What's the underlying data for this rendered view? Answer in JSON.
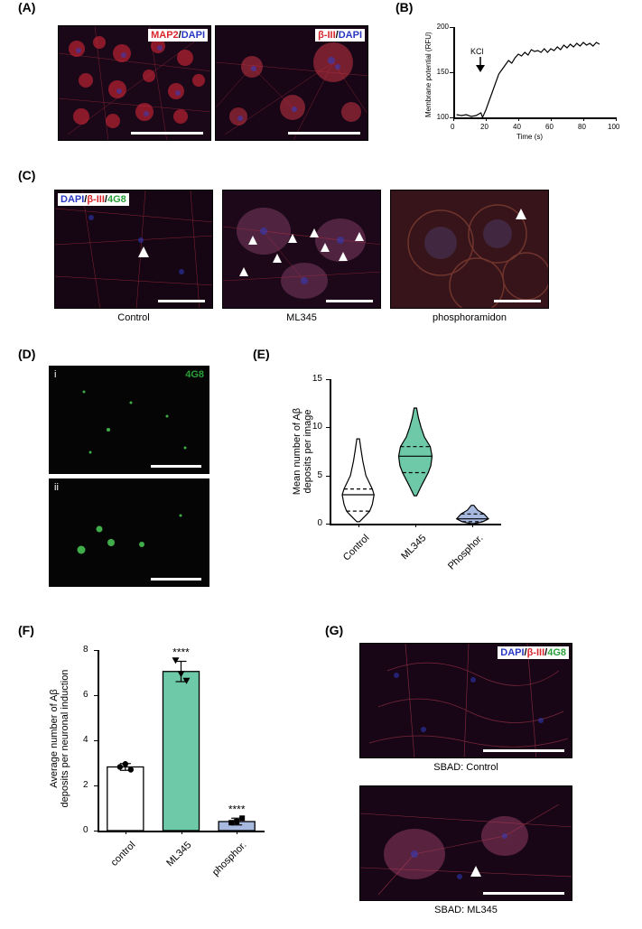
{
  "labels": {
    "A": "(A)",
    "B": "(B)",
    "C": "(C)",
    "D": "(D)",
    "E": "(E)",
    "F": "(F)",
    "G": "(G)"
  },
  "panel_label_fontsize": 14,
  "colors": {
    "MAP2": "#d8262c",
    "DAPI": "#2838c4",
    "bIII": "#d8262c",
    "fg8": "#2aa039",
    "micro_bg_dark": "#1a0818",
    "micro_bg_black": "#050505",
    "green_fill": "#6ec9a8",
    "blue_fill": "#a8b9e0",
    "bar_border": "#000000",
    "page_bg": "#ffffff"
  },
  "A": {
    "stains": [
      "MAP2",
      "/",
      "DAPI"
    ],
    "stains2": [
      "β-III",
      "/",
      "DAPI"
    ],
    "stain_fontsize": 11
  },
  "B": {
    "ylabel": "Membrane potential (RFU)",
    "xlabel": "Time (s)",
    "kcl_label": "KCl",
    "xlim": [
      0,
      100
    ],
    "xticks": [
      0,
      20,
      40,
      60,
      80,
      100
    ],
    "ylim": [
      100,
      200
    ],
    "yticks": [
      100,
      150,
      200
    ],
    "axis_fontsize": 9,
    "tick_fontsize": 8,
    "line_color": "#000000",
    "data": [
      [
        2,
        103
      ],
      [
        5,
        102
      ],
      [
        8,
        103
      ],
      [
        11,
        101
      ],
      [
        14,
        102
      ],
      [
        17,
        105
      ],
      [
        18,
        100
      ],
      [
        20,
        108
      ],
      [
        22,
        118
      ],
      [
        24,
        128
      ],
      [
        26,
        138
      ],
      [
        28,
        148
      ],
      [
        30,
        153
      ],
      [
        32,
        158
      ],
      [
        34,
        163
      ],
      [
        36,
        160
      ],
      [
        38,
        166
      ],
      [
        40,
        170
      ],
      [
        42,
        168
      ],
      [
        44,
        172
      ],
      [
        46,
        169
      ],
      [
        48,
        175
      ],
      [
        50,
        173
      ],
      [
        52,
        174
      ],
      [
        54,
        172
      ],
      [
        56,
        176
      ],
      [
        58,
        172
      ],
      [
        60,
        176
      ],
      [
        62,
        174
      ],
      [
        64,
        178
      ],
      [
        66,
        175
      ],
      [
        68,
        180
      ],
      [
        70,
        177
      ],
      [
        72,
        181
      ],
      [
        74,
        178
      ],
      [
        76,
        182
      ],
      [
        78,
        179
      ],
      [
        80,
        183
      ],
      [
        82,
        180
      ],
      [
        84,
        182
      ],
      [
        86,
        179
      ],
      [
        88,
        183
      ],
      [
        90,
        181
      ]
    ],
    "kcl_x": 16
  },
  "C": {
    "stains": [
      "DAPI",
      "/",
      "β-III",
      "/",
      "4G8"
    ],
    "captions": [
      "Control",
      "ML345",
      "phosphoramidon"
    ],
    "stain_fontsize": 11,
    "caption_fontsize": 11
  },
  "D": {
    "label_i": "i",
    "label_ii": "ii",
    "stain": "4G8",
    "stain_fontsize": 11,
    "sublabel_fontsize": 11
  },
  "E": {
    "type": "violin",
    "ylabel": "Mean number of Aβ\ndeposits per image",
    "ylim": [
      0,
      15
    ],
    "yticks": [
      0,
      5,
      10,
      15
    ],
    "categories": [
      "Control",
      "ML345",
      "Phosphor."
    ],
    "axis_fontsize": 11,
    "tick_fontsize": 10,
    "violins": [
      {
        "fill": "#ffffff",
        "stroke": "#000000",
        "median": 3.0,
        "q1": 1.3,
        "q3": 3.6,
        "min": 0.2,
        "max": 8.8,
        "profile": [
          [
            0.2,
            0.05
          ],
          [
            1.0,
            0.35
          ],
          [
            1.3,
            0.45
          ],
          [
            2.0,
            0.55
          ],
          [
            3.0,
            0.62
          ],
          [
            3.6,
            0.55
          ],
          [
            5.0,
            0.3
          ],
          [
            6.5,
            0.18
          ],
          [
            7.5,
            0.12
          ],
          [
            8.8,
            0.05
          ]
        ]
      },
      {
        "fill": "#6ec9a8",
        "stroke": "#000000",
        "median": 7.0,
        "q1": 5.3,
        "q3": 8.0,
        "min": 2.9,
        "max": 12.0,
        "profile": [
          [
            2.9,
            0.05
          ],
          [
            4.0,
            0.25
          ],
          [
            5.3,
            0.5
          ],
          [
            6.0,
            0.6
          ],
          [
            7.0,
            0.65
          ],
          [
            8.0,
            0.58
          ],
          [
            9.0,
            0.35
          ],
          [
            10.0,
            0.22
          ],
          [
            11.0,
            0.12
          ],
          [
            12.0,
            0.05
          ]
        ]
      },
      {
        "fill": "#a8b9e0",
        "stroke": "#000000",
        "median": 0.5,
        "q1": 0.2,
        "q3": 1.0,
        "min": 0.0,
        "max": 1.9,
        "profile": [
          [
            0.0,
            0.05
          ],
          [
            0.2,
            0.4
          ],
          [
            0.5,
            0.62
          ],
          [
            1.0,
            0.45
          ],
          [
            1.4,
            0.2
          ],
          [
            1.9,
            0.05
          ]
        ]
      }
    ]
  },
  "F": {
    "type": "bar",
    "ylabel": "Average number of Aβ\ndeposits per neuronal induction",
    "ylim": [
      0,
      8
    ],
    "yticks": [
      0,
      2,
      4,
      6,
      8
    ],
    "categories": [
      "control",
      "ML345",
      "phosphor."
    ],
    "axis_fontsize": 11,
    "tick_fontsize": 10,
    "bars": [
      {
        "value": 2.82,
        "err": 0.15,
        "fill": "#ffffff",
        "points": [
          2.82,
          2.95,
          2.7
        ],
        "marker": "circle",
        "sig": ""
      },
      {
        "value": 7.05,
        "err": 0.45,
        "fill": "#6ec9a8",
        "points": [
          7.55,
          6.95,
          6.65
        ],
        "marker": "triangle-down",
        "sig": "****"
      },
      {
        "value": 0.4,
        "err": 0.15,
        "fill": "#a8b9e0",
        "points": [
          0.35,
          0.4,
          0.55
        ],
        "marker": "square",
        "sig": "****"
      }
    ],
    "bar_width": 0.65,
    "sig_fontsize": 12
  },
  "G": {
    "stains": [
      "DAPI",
      "/",
      "β-III",
      "/",
      "4G8"
    ],
    "captions": [
      "SBAD: Control",
      "SBAD: ML345"
    ],
    "stain_fontsize": 11,
    "caption_fontsize": 11
  }
}
